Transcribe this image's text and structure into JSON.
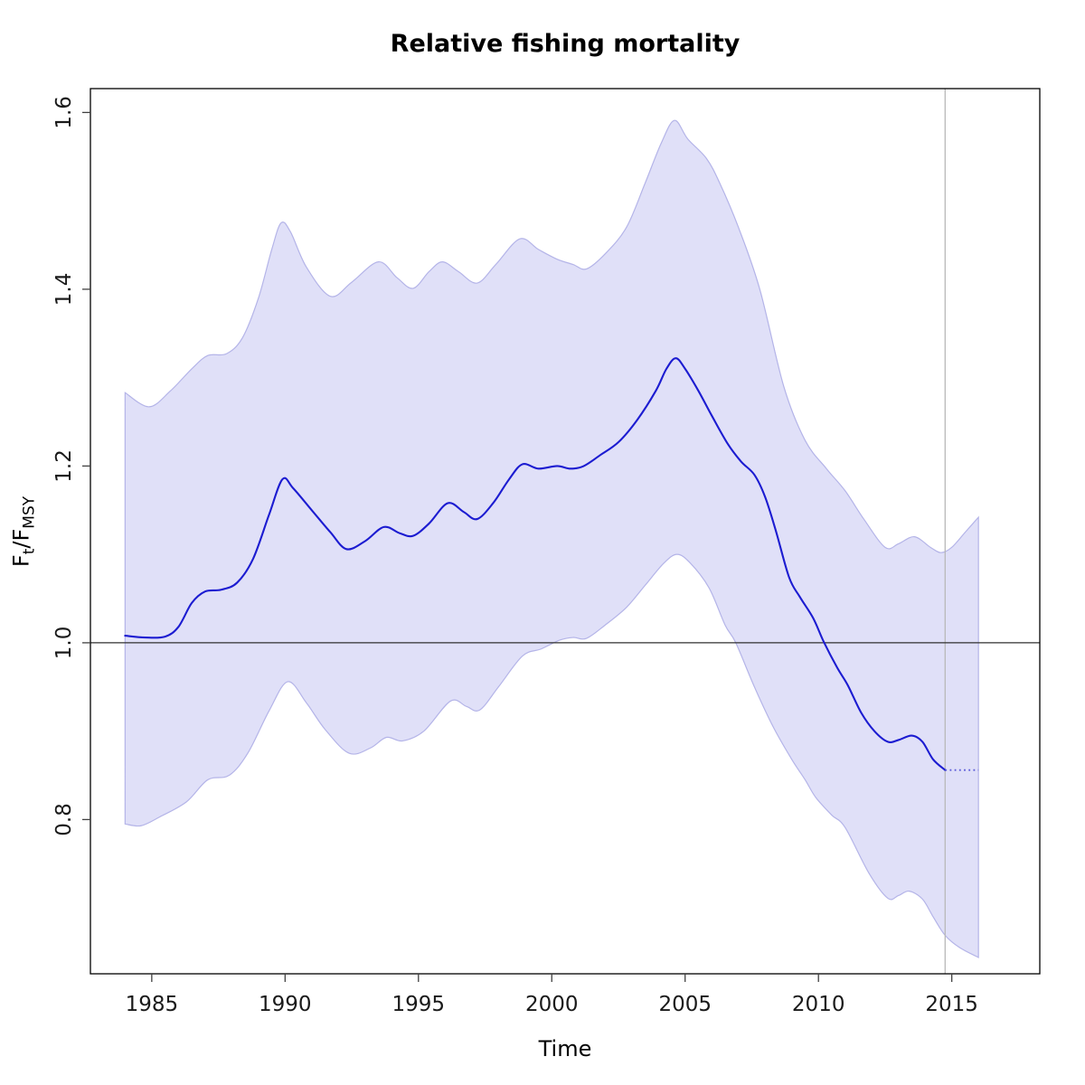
{
  "title": "Relative fishing mortality",
  "xlabel": "Time",
  "ylabel": {
    "f1": "F",
    "sub1": "t",
    "slash": "/",
    "f2": "F",
    "sub2": "MSY"
  },
  "colors": {
    "band_fill": "#e0e0f8",
    "band_edge": "#b4b4e8",
    "median_line": "#1c1cd1",
    "projection_line": "#5b5bd8",
    "reference_line": "#303030",
    "vertical_line": "#b8b8b8",
    "axis": "#000000",
    "tick": "#404040",
    "tick_label": "#1a1a1a"
  },
  "chart_data": {
    "type": "line",
    "title": "Relative fishing mortality",
    "xlabel": "Time",
    "ylabel": "Ft/Fmsy",
    "xlim": [
      1982.7,
      2018.3
    ],
    "ylim": [
      0.6255,
      1.627
    ],
    "x_ticks": [
      1985,
      1990,
      1995,
      2000,
      2005,
      2010,
      2015
    ],
    "x_tick_labels": [
      "1985",
      "1990",
      "1995",
      "2000",
      "2005",
      "2010",
      "2015"
    ],
    "y_ticks": [
      0.8,
      1.0,
      1.2,
      1.4,
      1.6
    ],
    "y_tick_labels": [
      "0.8",
      "1.0",
      "1.2",
      "1.4",
      "1.6"
    ],
    "grid": false,
    "legend": null,
    "reference_line_y": 1.0,
    "vertical_line_x": 2014.75,
    "series": [
      {
        "name": "median",
        "style": "solid",
        "x": [
          1984.0,
          1984.75,
          1985.5,
          1986.0,
          1986.5,
          1987.0,
          1987.6,
          1988.2,
          1988.8,
          1989.4,
          1989.9,
          1990.3,
          1991.0,
          1991.7,
          1992.3,
          1993.0,
          1993.7,
          1994.3,
          1994.8,
          1995.4,
          1996.1,
          1996.7,
          1997.2,
          1997.8,
          1998.4,
          1998.9,
          1999.5,
          2000.2,
          2000.7,
          2001.2,
          2001.8,
          2002.5,
          2003.2,
          2003.9,
          2004.3,
          2004.65,
          2005.0,
          2005.5,
          2006.0,
          2006.6,
          2007.1,
          2007.6,
          2008.0,
          2008.4,
          2008.9,
          2009.3,
          2009.8,
          2010.2,
          2010.7,
          2011.1,
          2011.6,
          2012.1,
          2012.6,
          2013.0,
          2013.5,
          2013.9,
          2014.3,
          2014.75
        ],
        "y": [
          1.008,
          1.006,
          1.007,
          1.018,
          1.045,
          1.058,
          1.06,
          1.068,
          1.095,
          1.145,
          1.185,
          1.175,
          1.15,
          1.125,
          1.106,
          1.115,
          1.131,
          1.124,
          1.121,
          1.135,
          1.158,
          1.148,
          1.14,
          1.158,
          1.185,
          1.202,
          1.197,
          1.2,
          1.197,
          1.2,
          1.212,
          1.227,
          1.252,
          1.285,
          1.31,
          1.322,
          1.31,
          1.285,
          1.257,
          1.225,
          1.205,
          1.19,
          1.165,
          1.127,
          1.074,
          1.052,
          1.028,
          1.001,
          0.972,
          0.952,
          0.921,
          0.9,
          0.888,
          0.89,
          0.895,
          0.888,
          0.868,
          0.856
        ]
      },
      {
        "name": "median-projection",
        "style": "dotted",
        "x": [
          2014.75,
          2016.0
        ],
        "y": [
          0.856,
          0.856
        ]
      },
      {
        "name": "ci-upper",
        "style": "band-edge",
        "x": [
          1984.0,
          1984.9,
          1985.7,
          1986.5,
          1987.1,
          1987.8,
          1988.4,
          1989.0,
          1989.5,
          1989.85,
          1990.2,
          1990.8,
          1991.7,
          1992.5,
          1993.5,
          1994.2,
          1994.8,
          1995.4,
          1995.9,
          1996.5,
          1997.2,
          1997.9,
          1998.8,
          1999.5,
          2000.2,
          2000.8,
          2001.3,
          2002.0,
          2002.8,
          2003.5,
          2004.1,
          2004.6,
          2005.1,
          2005.8,
          2006.3,
          2007.0,
          2007.8,
          2008.7,
          2009.5,
          2010.3,
          2011.0,
          2011.7,
          2012.5,
          2013.0,
          2013.6,
          2014.2,
          2014.6,
          2015.0,
          2015.5,
          2016.0
        ],
        "y": [
          1.283,
          1.267,
          1.285,
          1.31,
          1.325,
          1.327,
          1.345,
          1.39,
          1.445,
          1.475,
          1.465,
          1.425,
          1.392,
          1.408,
          1.431,
          1.413,
          1.401,
          1.42,
          1.431,
          1.42,
          1.407,
          1.428,
          1.457,
          1.445,
          1.434,
          1.428,
          1.423,
          1.44,
          1.47,
          1.52,
          1.565,
          1.591,
          1.57,
          1.548,
          1.52,
          1.47,
          1.4,
          1.29,
          1.229,
          1.197,
          1.172,
          1.14,
          1.108,
          1.112,
          1.12,
          1.108,
          1.102,
          1.108,
          1.125,
          1.142
        ]
      },
      {
        "name": "ci-lower",
        "style": "band-edge",
        "x": [
          1984.0,
          1984.6,
          1985.3,
          1986.3,
          1987.1,
          1987.9,
          1988.6,
          1989.4,
          1990.1,
          1990.8,
          1991.5,
          1992.4,
          1993.2,
          1993.8,
          1994.4,
          1995.2,
          1996.2,
          1996.8,
          1997.3,
          1998.0,
          1998.9,
          1999.6,
          2000.3,
          2000.8,
          2001.3,
          2002.0,
          2002.8,
          2003.5,
          2004.2,
          2004.7,
          2005.2,
          2005.9,
          2006.5,
          2006.9,
          2007.6,
          2008.3,
          2009.0,
          2009.5,
          2009.9,
          2010.5,
          2011.0,
          2011.9,
          2012.6,
          2013.0,
          2013.4,
          2013.9,
          2014.3,
          2014.75,
          2015.3,
          2016.0
        ],
        "y": [
          0.795,
          0.793,
          0.803,
          0.82,
          0.845,
          0.85,
          0.875,
          0.923,
          0.956,
          0.932,
          0.902,
          0.875,
          0.881,
          0.893,
          0.889,
          0.9,
          0.934,
          0.928,
          0.924,
          0.95,
          0.985,
          0.993,
          1.003,
          1.006,
          1.005,
          1.02,
          1.04,
          1.065,
          1.09,
          1.1,
          1.09,
          1.062,
          1.02,
          1.0,
          0.95,
          0.905,
          0.868,
          0.845,
          0.825,
          0.805,
          0.791,
          0.739,
          0.711,
          0.714,
          0.719,
          0.71,
          0.69,
          0.669,
          0.655,
          0.644
        ]
      }
    ]
  }
}
